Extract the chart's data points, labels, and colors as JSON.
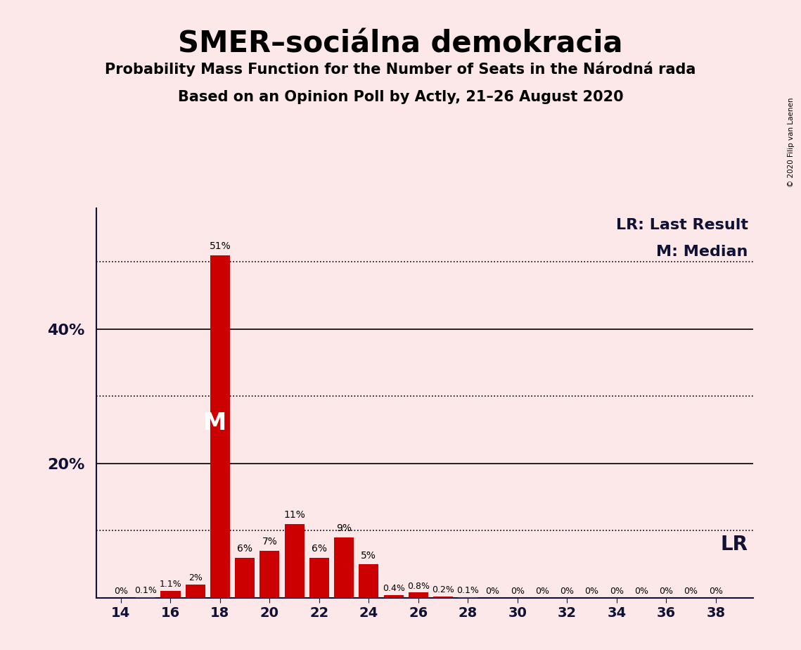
{
  "title": "SMER–sociálna demokracia",
  "subtitle1": "Probability Mass Function for the Number of Seats in the Národná rada",
  "subtitle2": "Based on an Opinion Poll by Actly, 21–26 August 2020",
  "copyright": "© 2020 Filip van Laenen",
  "background_color": "#fce8e8",
  "bar_color": "#cc0000",
  "seats": [
    14,
    15,
    16,
    17,
    18,
    19,
    20,
    21,
    22,
    23,
    24,
    25,
    26,
    27,
    28,
    29,
    30,
    31,
    32,
    33,
    34,
    35,
    36,
    37,
    38
  ],
  "probabilities": [
    0.0,
    0.1,
    1.1,
    2.0,
    51.0,
    6.0,
    7.0,
    11.0,
    6.0,
    9.0,
    5.0,
    0.4,
    0.8,
    0.2,
    0.1,
    0.0,
    0.0,
    0.0,
    0.0,
    0.0,
    0.0,
    0.0,
    0.0,
    0.0,
    0.0
  ],
  "labels": [
    "0%",
    "0.1%",
    "1.1%",
    "2%",
    "51%",
    "6%",
    "7%",
    "11%",
    "6%",
    "9%",
    "5%",
    "0.4%",
    "0.8%",
    "0.2%",
    "0.1%",
    "0%",
    "0%",
    "0%",
    "0%",
    "0%",
    "0%",
    "0%",
    "0%",
    "0%",
    "0%"
  ],
  "median_seat": 18,
  "lr_legend": "LR: Last Result",
  "m_legend": "M: Median",
  "lr_label": "LR",
  "ytick_labels": [
    "",
    "",
    "20%",
    "",
    "40%",
    ""
  ],
  "ytick_values": [
    0,
    10,
    20,
    30,
    40,
    50
  ],
  "ylim": [
    0,
    58
  ],
  "xlim": [
    13.0,
    39.5
  ],
  "xlabel_ticks": [
    14,
    16,
    18,
    20,
    22,
    24,
    26,
    28,
    30,
    32,
    34,
    36,
    38
  ],
  "dotted_lines": [
    10,
    30,
    50
  ],
  "solid_lines": [
    20,
    40
  ],
  "bar_width": 0.8
}
